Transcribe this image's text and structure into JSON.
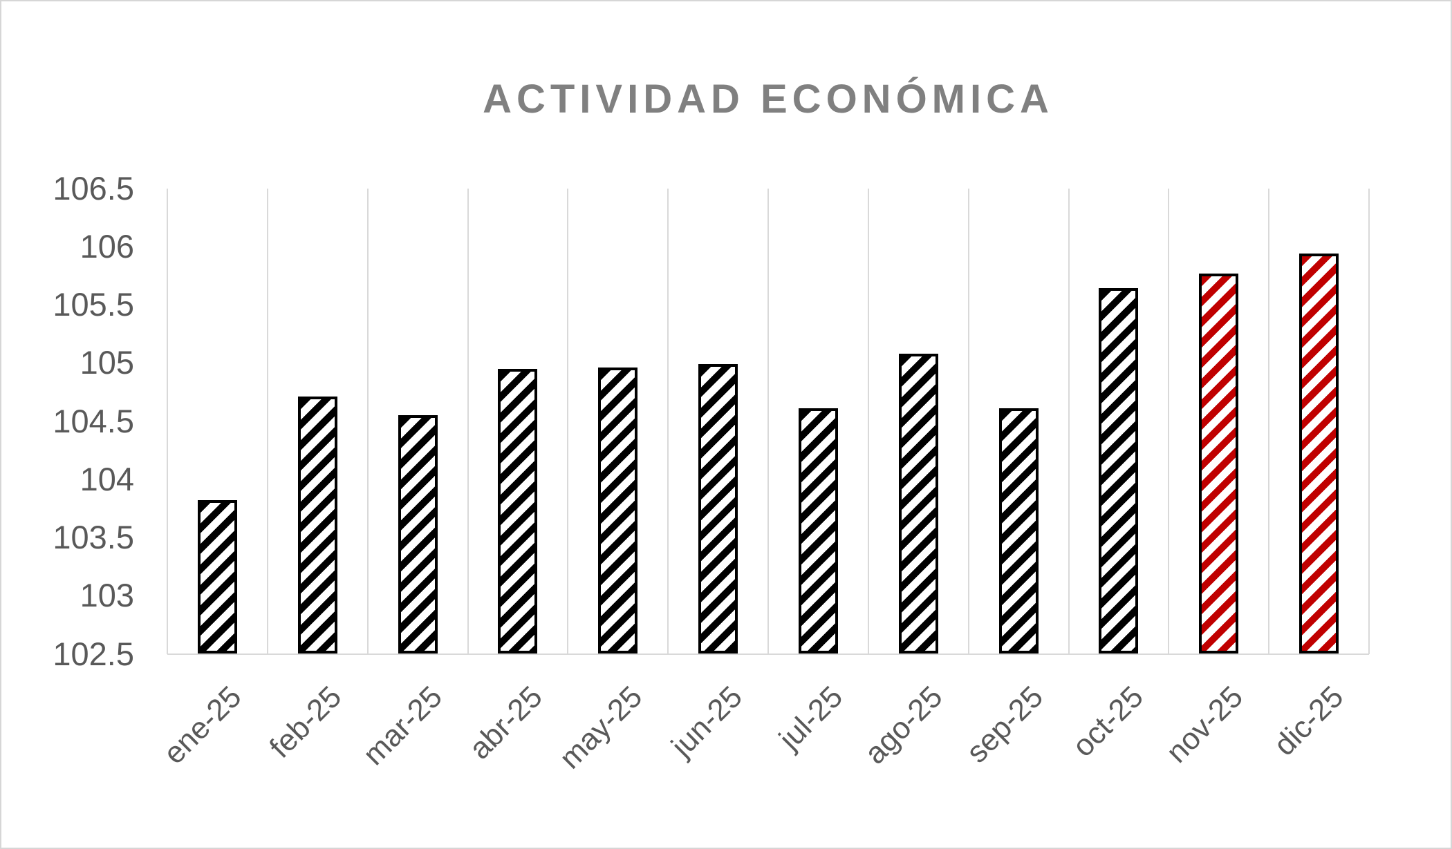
{
  "frame": {
    "background_color": "#ffffff",
    "border_color": "#d6d6d6"
  },
  "chart_data": {
    "type": "bar",
    "title": "ACTIVIDAD ECONÓMICA",
    "categories": [
      "ene-25",
      "feb-25",
      "mar-25",
      "abr-25",
      "may-25",
      "jun-25",
      "jul-25",
      "ago-25",
      "sep-25",
      "oct-25",
      "nov-25",
      "dic-25"
    ],
    "values": [
      103.82,
      104.71,
      104.55,
      104.95,
      104.96,
      104.99,
      104.61,
      105.08,
      104.61,
      105.64,
      105.77,
      105.94
    ],
    "bar_styles": [
      "black",
      "black",
      "black",
      "black",
      "black",
      "black",
      "black",
      "black",
      "black",
      "black",
      "red",
      "red"
    ],
    "xlabel": "",
    "ylabel": "",
    "ylim": [
      102.5,
      106.5
    ],
    "ytick_step": 0.5,
    "ytick_labels": [
      "106.5",
      "106",
      "105.5",
      "105",
      "104.5",
      "104",
      "103.5",
      "103",
      "102.5"
    ],
    "grid": "vertical category separators only, plus baseline; no horizontal gridlines",
    "legend": "none",
    "bar_fill": "diagonal hatch stripes, bottom-left to top-right",
    "colors": {
      "hatch_black": "#000000",
      "hatch_red": "#c00000",
      "bar_border": "#000000",
      "title_text": "#808080",
      "axis_text": "#595959",
      "gridline": "#d9d9d9"
    }
  }
}
